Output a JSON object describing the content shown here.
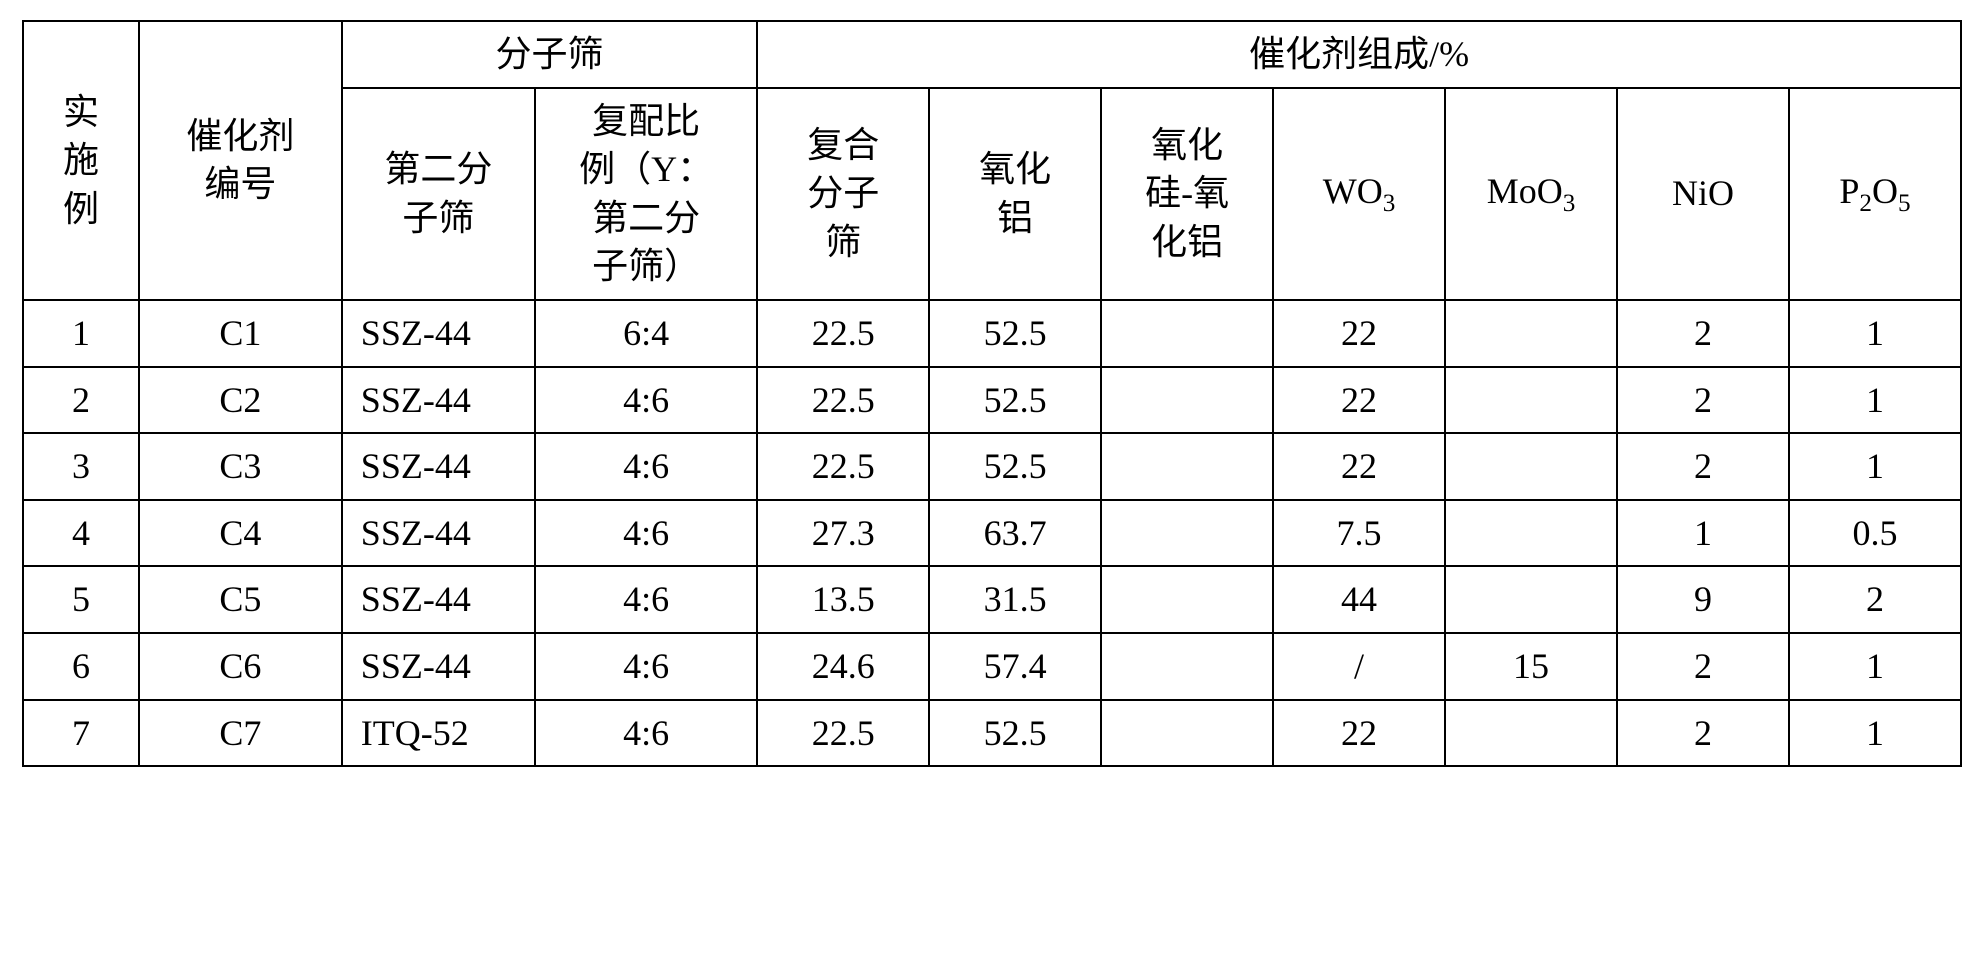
{
  "table": {
    "border_color": "#000000",
    "background_color": "#ffffff",
    "font_family": "Times New Roman / SimSun",
    "font_size_pt": 28,
    "header": {
      "example": "实\n施\n例",
      "catalyst_id": "催化剂\n编号",
      "molecular_sieve_group": "分子筛",
      "second_sieve": "第二分\n子筛",
      "compound_ratio": "复配比\n例（Y：\n第二分\n子筛）",
      "catalyst_comp_group": "催化剂组成/%",
      "composite_sieve": "复合\n分子\n筛",
      "alumina": "氧化\n铝",
      "silica_alumina": "氧化\n硅-氧\n化铝",
      "wo3": "WO",
      "wo3_sub": "3",
      "moo3": "MoO",
      "moo3_sub": "3",
      "nio": "NiO",
      "p2o5_p": "P",
      "p2o5_2": "2",
      "p2o5_o": "O",
      "p2o5_5": "5"
    },
    "rows": [
      {
        "ex": "1",
        "id": "C1",
        "sieve": "SSZ-44",
        "ratio": "6:4",
        "composite": "22.5",
        "alumina": "52.5",
        "si_al": "",
        "wo3": "22",
        "moo3": "",
        "nio": "2",
        "p2o5": "1"
      },
      {
        "ex": "2",
        "id": "C2",
        "sieve": "SSZ-44",
        "ratio": "4:6",
        "composite": "22.5",
        "alumina": "52.5",
        "si_al": "",
        "wo3": "22",
        "moo3": "",
        "nio": "2",
        "p2o5": "1"
      },
      {
        "ex": "3",
        "id": "C3",
        "sieve": "SSZ-44",
        "ratio": "4:6",
        "composite": "22.5",
        "alumina": "52.5",
        "si_al": "",
        "wo3": "22",
        "moo3": "",
        "nio": "2",
        "p2o5": "1"
      },
      {
        "ex": "4",
        "id": "C4",
        "sieve": "SSZ-44",
        "ratio": "4:6",
        "composite": "27.3",
        "alumina": "63.7",
        "si_al": "",
        "wo3": "7.5",
        "moo3": "",
        "nio": "1",
        "p2o5": "0.5"
      },
      {
        "ex": "5",
        "id": "C5",
        "sieve": "SSZ-44",
        "ratio": "4:6",
        "composite": "13.5",
        "alumina": "31.5",
        "si_al": "",
        "wo3": "44",
        "moo3": "",
        "nio": "9",
        "p2o5": "2"
      },
      {
        "ex": "6",
        "id": "C6",
        "sieve": "SSZ-44",
        "ratio": "4:6",
        "composite": "24.6",
        "alumina": "57.4",
        "si_al": "",
        "wo3": "/",
        "moo3": "15",
        "nio": "2",
        "p2o5": "1"
      },
      {
        "ex": "7",
        "id": "C7",
        "sieve": "ITQ-52",
        "ratio": "4:6",
        "composite": "22.5",
        "alumina": "52.5",
        "si_al": "",
        "wo3": "22",
        "moo3": "",
        "nio": "2",
        "p2o5": "1"
      }
    ]
  }
}
